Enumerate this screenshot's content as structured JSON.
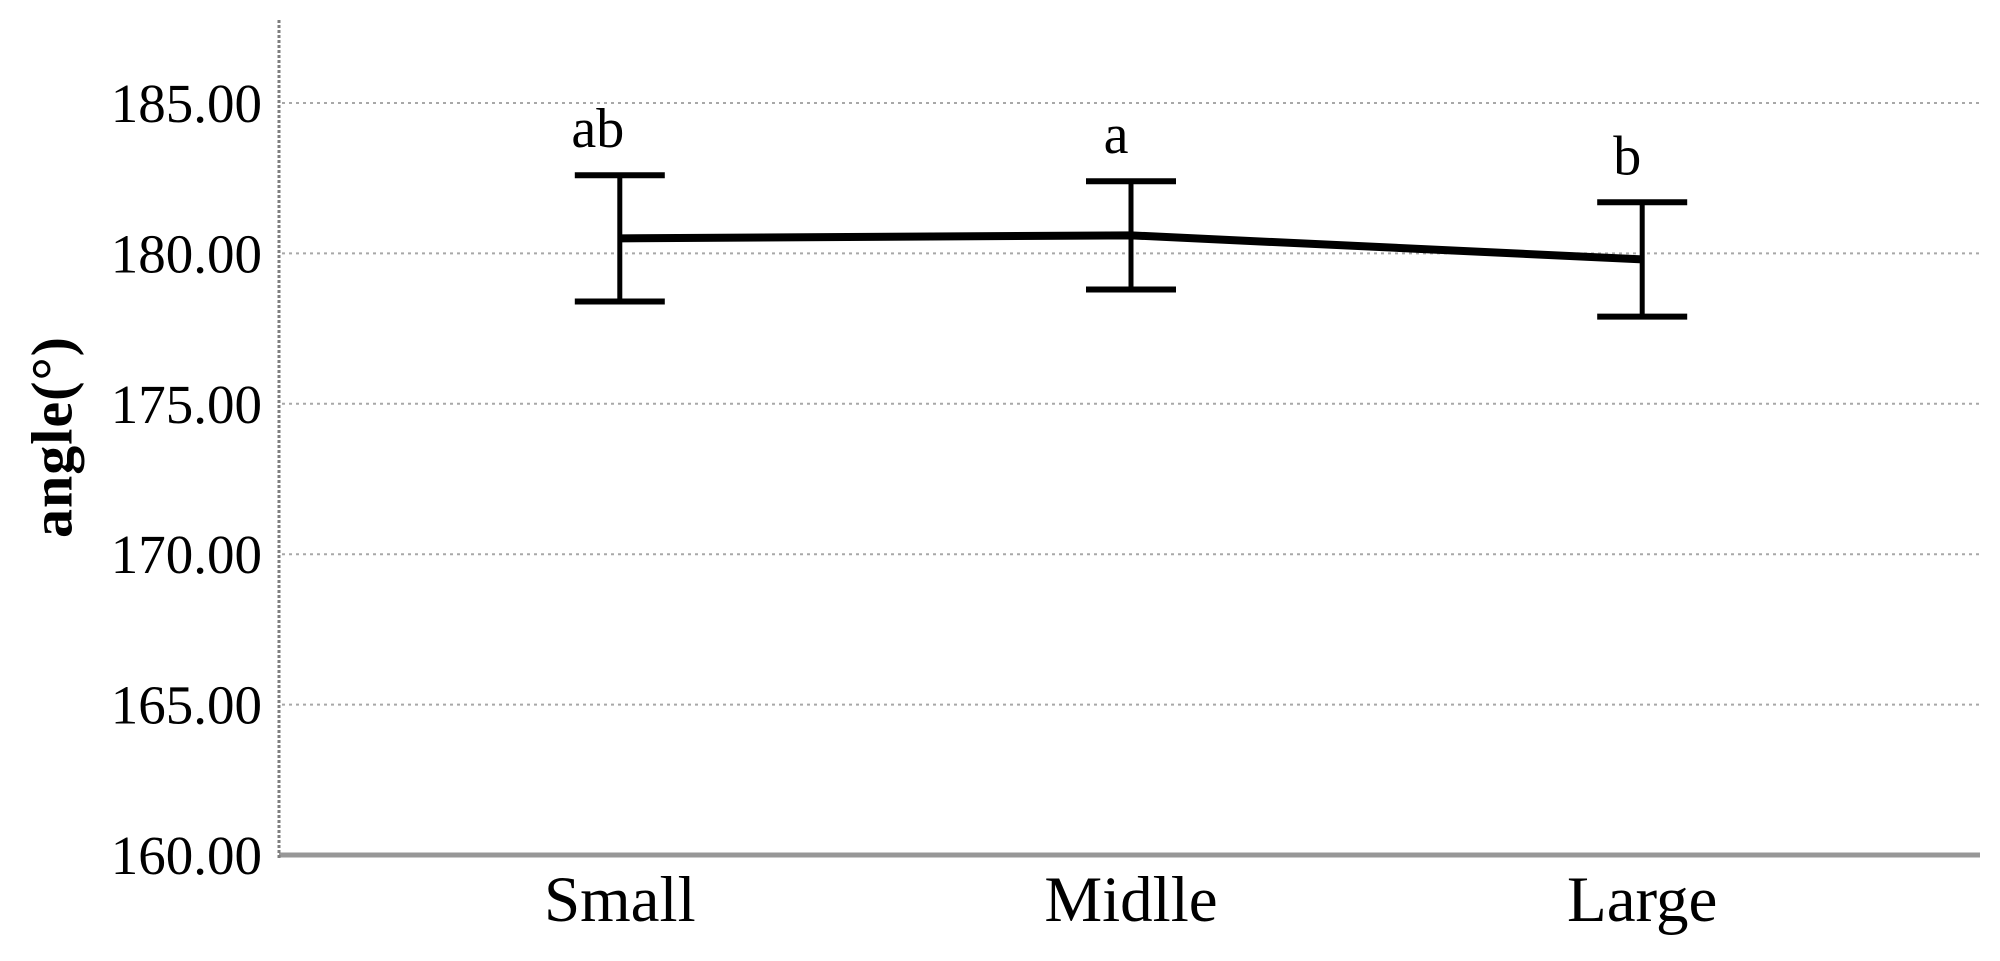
{
  "chart_data": {
    "type": "line",
    "title": "",
    "ylabel": "angle(°)",
    "xlabel": "",
    "categories": [
      "Small",
      "Midlle",
      "Large"
    ],
    "series": [
      {
        "name": "angle",
        "means": [
          180.5,
          180.6,
          179.8
        ],
        "ci_low": [
          178.4,
          178.8,
          177.9
        ],
        "ci_high": [
          182.6,
          182.4,
          181.7
        ]
      }
    ],
    "sig_letters": [
      "ab",
      "a",
      "b"
    ],
    "ylim": [
      160,
      185
    ],
    "yticks": [
      160,
      165,
      170,
      175,
      180,
      185
    ],
    "ytick_labels": [
      "160.00",
      "165.00",
      "170.00",
      "175.00",
      "180.00",
      "185.00"
    ],
    "grid": true,
    "legend": "none",
    "colors": {
      "line": "#000000",
      "error_bar": "#000000",
      "text": "#000000",
      "gridline": "#a8a8a8",
      "axis": "#7d7d7d",
      "baseline": "#979797",
      "background": "#ffffff"
    }
  }
}
